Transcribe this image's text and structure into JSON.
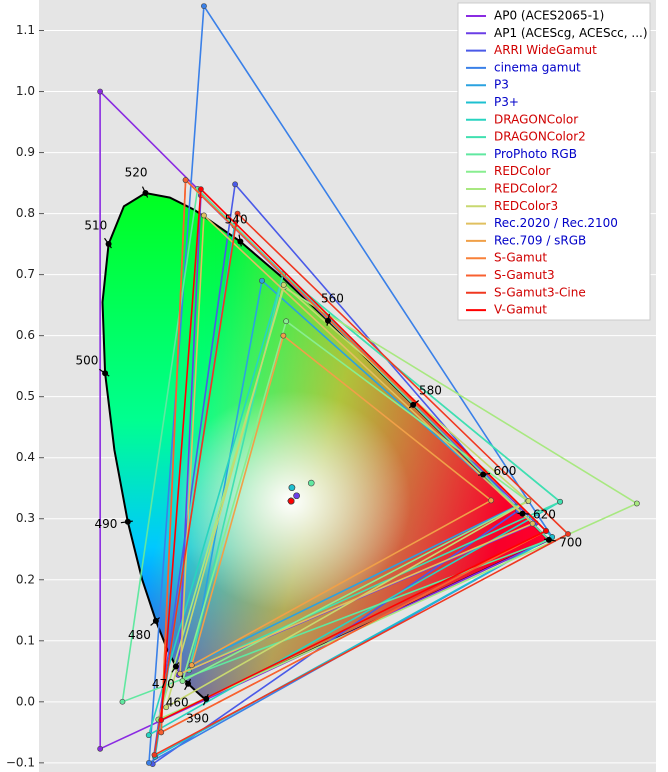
{
  "chart_data": {
    "type": "gamut",
    "xlim": [
      -0.1,
      0.91
    ],
    "ylim": [
      -0.115,
      1.15
    ],
    "yticks": [
      {
        "value": -0.1,
        "label": "−0.1"
      },
      {
        "value": 0,
        "label": "0.0"
      },
      0.1,
      0.2,
      0.3,
      0.4,
      0.5,
      0.6,
      0.7,
      0.8,
      0.9,
      {
        "value": 1,
        "label": "1.0"
      },
      1.1
    ],
    "grid": true,
    "legend": "upper right",
    "locus": {
      "x": [
        0.1741,
        0.1738,
        0.1733,
        0.1726,
        0.1714,
        0.1689,
        0.1644,
        0.1566,
        0.144,
        0.1355,
        0.1241,
        0.1096,
        0.0913,
        0.0687,
        0.0454,
        0.0235,
        0.0082,
        0.0039,
        0.0139,
        0.0389,
        0.0743,
        0.1142,
        0.1547,
        0.2296,
        0.3016,
        0.3731,
        0.4441,
        0.5125,
        0.5752,
        0.627,
        0.6658,
        0.6915,
        0.7079,
        0.719,
        0.726,
        0.73,
        0.7334,
        0.7347
      ],
      "y": [
        0.005,
        0.0049,
        0.0048,
        0.0048,
        0.0051,
        0.0069,
        0.0109,
        0.0177,
        0.0297,
        0.0399,
        0.0578,
        0.0868,
        0.1327,
        0.2007,
        0.295,
        0.4127,
        0.5384,
        0.6548,
        0.7502,
        0.812,
        0.8338,
        0.8262,
        0.8059,
        0.7543,
        0.6923,
        0.6245,
        0.5547,
        0.4866,
        0.4242,
        0.3725,
        0.334,
        0.3083,
        0.292,
        0.2809,
        0.274,
        0.27,
        0.2666,
        0.2653
      ],
      "labels": [
        null,
        390,
        null,
        null,
        null,
        null,
        null,
        null,
        460,
        null,
        470,
        null,
        480,
        null,
        490,
        null,
        500,
        null,
        510,
        null,
        520,
        null,
        null,
        540,
        null,
        560,
        null,
        580,
        null,
        600,
        null,
        620,
        null,
        null,
        null,
        null,
        null,
        700
      ]
    },
    "series": [
      {
        "name": "AP0  (ACES2065-1)",
        "color": "#8a2be2",
        "label_color": "#000000",
        "x": [
          0.7347,
          0.0,
          0.0001
        ],
        "y": [
          0.2653,
          1.0,
          -0.077
        ],
        "white": [
          0.32168,
          0.33767
        ]
      },
      {
        "name": "AP1  (ACEScg, ACEScc, ...)",
        "color": "#6a3ee6",
        "label_color": "#000000",
        "x": [
          0.713,
          0.165,
          0.128
        ],
        "y": [
          0.293,
          0.83,
          0.044
        ],
        "white": [
          0.32168,
          0.33767
        ]
      },
      {
        "name": "ARRI WideGamut",
        "color": "#4a5ae8",
        "label_color": "#d00000",
        "x": [
          0.684,
          0.221,
          0.0861
        ],
        "y": [
          0.313,
          0.848,
          -0.102
        ],
        "white": [
          0.3127,
          0.329
        ]
      },
      {
        "name": "cinema gamut",
        "color": "#3a80e8",
        "label_color": "#0000c8",
        "x": [
          0.74,
          0.17,
          0.08
        ],
        "y": [
          0.27,
          1.14,
          -0.1
        ],
        "white": [
          0.3127,
          0.329
        ]
      },
      {
        "name": "P3",
        "color": "#2aa2e0",
        "label_color": "#0000c8",
        "x": [
          0.68,
          0.265,
          0.15
        ],
        "y": [
          0.32,
          0.69,
          0.06
        ],
        "white": [
          0.314,
          0.351
        ]
      },
      {
        "name": "P3+",
        "color": "#1ec0d0",
        "label_color": "#0000c8",
        "x": [
          0.74,
          0.22,
          0.09
        ],
        "y": [
          0.27,
          0.78,
          -0.09
        ],
        "white": [
          0.314,
          0.351
        ]
      },
      {
        "name": "DRAGONColor",
        "color": "#28d4c0",
        "label_color": "#d00000",
        "x": [
          0.753,
          0.2996,
          0.0796
        ],
        "y": [
          0.3278,
          0.7004,
          -0.0546
        ],
        "white": [
          0.3127,
          0.329
        ]
      },
      {
        "name": "DRAGONColor2",
        "color": "#40e0b0",
        "label_color": "#d00000",
        "x": [
          0.753,
          0.2996,
          0.1456
        ],
        "y": [
          0.3278,
          0.7004,
          0.0517
        ],
        "white": [
          0.3127,
          0.329
        ]
      },
      {
        "name": "ProPhoto RGB",
        "color": "#60e8a0",
        "label_color": "#0000c8",
        "x": [
          0.7347,
          0.1596,
          0.0366
        ],
        "y": [
          0.2653,
          0.8404,
          0.0001
        ],
        "white": [
          0.3457,
          0.3585
        ]
      },
      {
        "name": "REDColor",
        "color": "#88ee90",
        "label_color": "#d00000",
        "x": [
          0.6997,
          0.3046,
          0.1349
        ],
        "y": [
          0.3291,
          0.6236,
          0.034
        ],
        "white": [
          0.3127,
          0.329
        ]
      },
      {
        "name": "REDColor2",
        "color": "#a8e880",
        "label_color": "#d00000",
        "x": [
          0.8787,
          0.3009,
          0.0953
        ],
        "y": [
          0.325,
          0.6791,
          -0.029
        ],
        "white": [
          0.3127,
          0.329
        ]
      },
      {
        "name": "REDColor3",
        "color": "#c8d870",
        "label_color": "#d00000",
        "x": [
          0.7012,
          0.3006,
          0.1082
        ],
        "y": [
          0.329,
          0.6831,
          -0.0089
        ],
        "white": [
          0.3127,
          0.329
        ]
      },
      {
        "name": "Rec.2020 / Rec.2100",
        "color": "#e0c060",
        "label_color": "#0000c8",
        "x": [
          0.708,
          0.17,
          0.131
        ],
        "y": [
          0.292,
          0.797,
          0.046
        ],
        "white": [
          0.3127,
          0.329
        ]
      },
      {
        "name": "Rec.709 / sRGB",
        "color": "#f0a048",
        "label_color": "#0000c8",
        "x": [
          0.64,
          0.3,
          0.15
        ],
        "y": [
          0.33,
          0.6,
          0.06
        ],
        "white": [
          0.3127,
          0.329
        ]
      },
      {
        "name": "S-Gamut",
        "color": "#f88038",
        "label_color": "#d00000",
        "x": [
          0.73,
          0.14,
          0.1
        ],
        "y": [
          0.28,
          0.855,
          -0.05
        ],
        "white": [
          0.3127,
          0.329
        ]
      },
      {
        "name": "S-Gamut3",
        "color": "#f86030",
        "label_color": "#d00000",
        "x": [
          0.73,
          0.14,
          0.1
        ],
        "y": [
          0.28,
          0.855,
          -0.05
        ],
        "white": [
          0.3127,
          0.329
        ]
      },
      {
        "name": "S-Gamut3-Cine",
        "color": "#f03820",
        "label_color": "#d00000",
        "x": [
          0.766,
          0.225,
          0.089
        ],
        "y": [
          0.275,
          0.8,
          -0.087
        ],
        "white": [
          0.3127,
          0.329
        ]
      },
      {
        "name": "V-Gamut",
        "color": "#ff0000",
        "label_color": "#d00000",
        "x": [
          0.73,
          0.165,
          0.1
        ],
        "y": [
          0.28,
          0.84,
          -0.03
        ],
        "white": [
          0.3127,
          0.329
        ]
      }
    ]
  }
}
